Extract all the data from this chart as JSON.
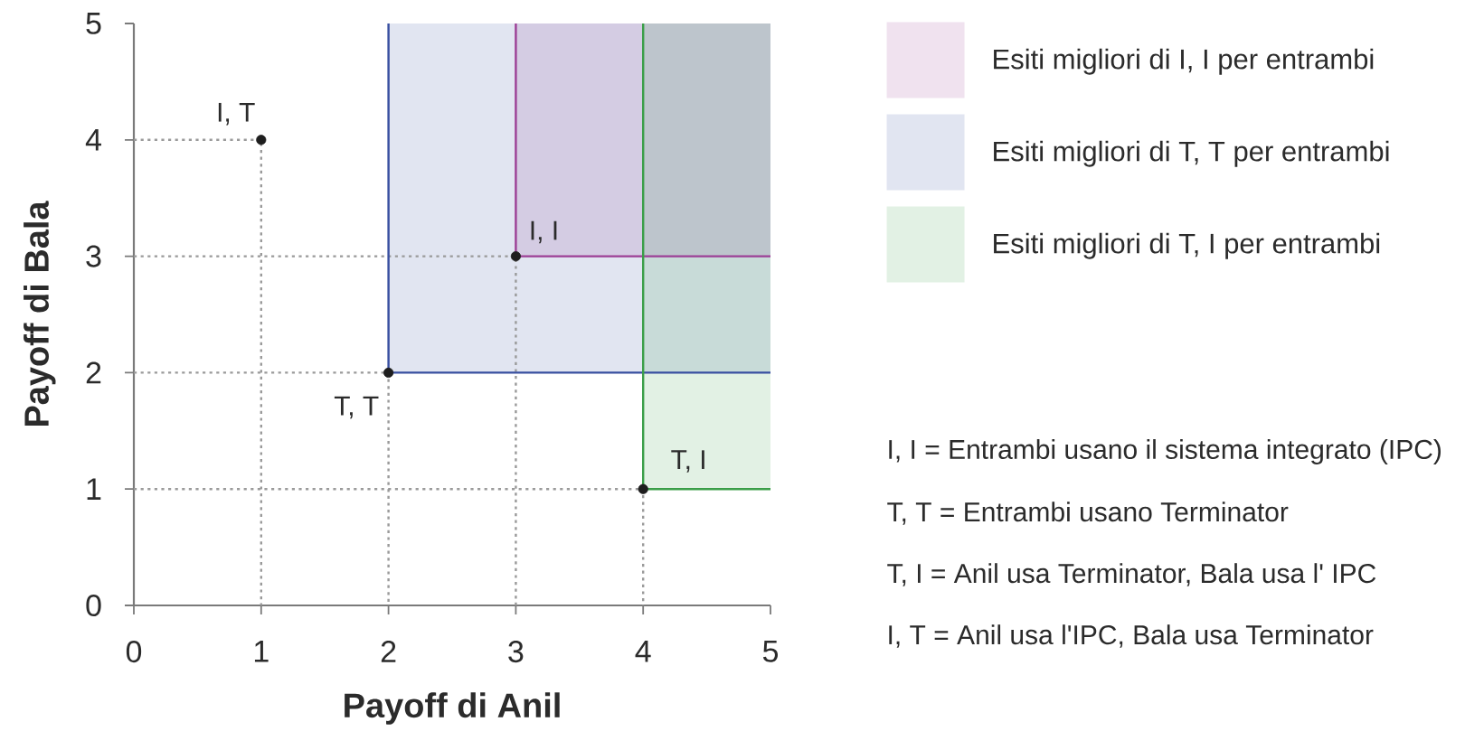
{
  "chart_data": {
    "type": "scatter",
    "xlabel": "Payoff di Anil",
    "ylabel": "Payoff di Bala",
    "xlim": [
      0,
      5
    ],
    "ylim": [
      0,
      5
    ],
    "xticks": [
      0,
      1,
      2,
      3,
      4,
      5
    ],
    "yticks": [
      0,
      1,
      2,
      3,
      4,
      5
    ],
    "legend": "right",
    "series": [
      {
        "type": "line",
        "x": [
          0,
          1,
          1
        ],
        "values": [
          4,
          4,
          0
        ],
        "color": "#9a9a9a",
        "line_style": "dotted"
      },
      {
        "type": "line",
        "x": [
          0,
          3,
          3
        ],
        "values": [
          3,
          3,
          0
        ],
        "color": "#9a9a9a",
        "line_style": "dotted"
      },
      {
        "type": "line",
        "x": [
          0,
          2,
          2
        ],
        "values": [
          2,
          2,
          0
        ],
        "color": "#9a9a9a",
        "line_style": "dotted"
      },
      {
        "type": "line",
        "x": [
          0,
          4,
          4
        ],
        "values": [
          1,
          1,
          0
        ],
        "color": "#9a9a9a",
        "line_style": "dotted"
      },
      {
        "type": "line",
        "name": "Esiti migliori di I, I per entrambi",
        "x": [
          3,
          3,
          5
        ],
        "values": [
          5,
          3,
          3
        ],
        "lower": [
          null,
          3,
          3
        ],
        "upper": [
          null,
          5,
          5
        ],
        "color": "#9c3f96",
        "line_style": "solid"
      },
      {
        "type": "line",
        "name": "Esiti migliori di T, T per entrambi",
        "x": [
          2,
          2,
          5
        ],
        "values": [
          5,
          2,
          2
        ],
        "lower": [
          null,
          2,
          2
        ],
        "upper": [
          null,
          5,
          5
        ],
        "color": "#384fa0",
        "line_style": "solid"
      },
      {
        "type": "line",
        "name": "Esiti migliori di T, I per entrambi",
        "x": [
          4,
          4,
          5
        ],
        "values": [
          5,
          1,
          1
        ],
        "lower": [
          null,
          1,
          1
        ],
        "upper": [
          null,
          5,
          5
        ],
        "color": "#3a9e48",
        "line_style": "solid"
      },
      {
        "x": [
          1,
          3,
          2,
          4
        ],
        "values": [
          4,
          3,
          2,
          1
        ],
        "color": "#1e1e1e",
        "marker": "circle"
      }
    ],
    "annotations": [
      {
        "text": "I, T",
        "x": 1,
        "y": 4
      },
      {
        "text": "I, I",
        "x": 3,
        "y": 3
      },
      {
        "text": "T, T",
        "x": 2,
        "y": 2
      },
      {
        "text": "T, I",
        "x": 4,
        "y": 1
      },
      "I, I = Entrambi usano il sistema integrato (IPC)",
      "T, T = Entrambi usano Terminator",
      "T, I = Anil usa Terminator, Bala usa l' IPC",
      "I, T = Anil usa l'IPC, Bala usa Terminator"
    ]
  }
}
